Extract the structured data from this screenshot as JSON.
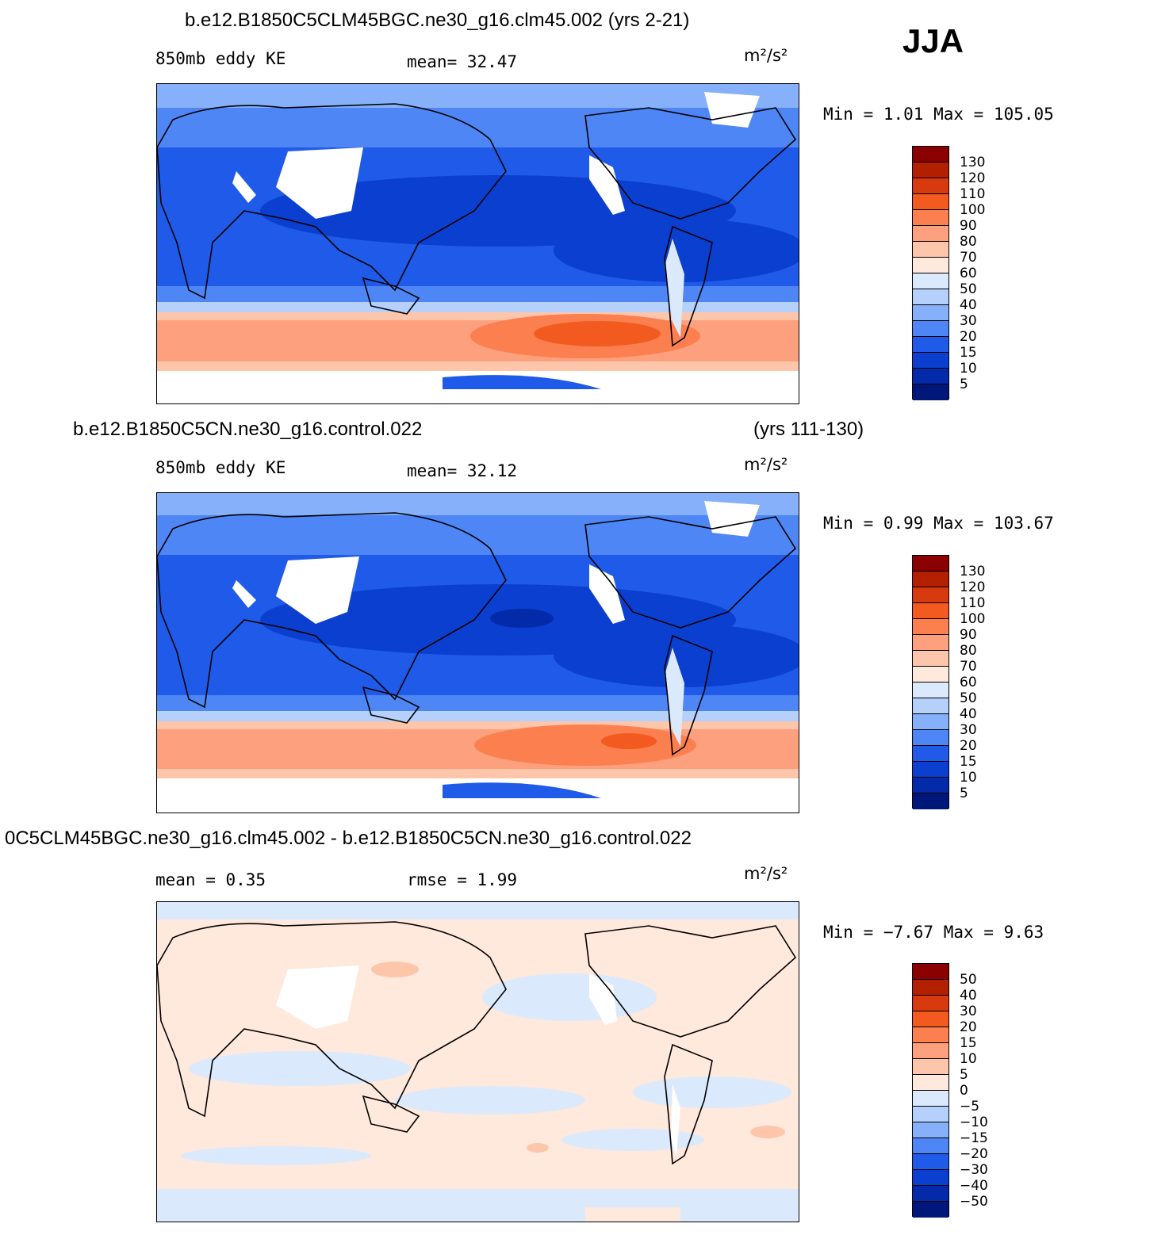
{
  "season": "JJA",
  "panels": [
    {
      "title_left": "b.e12.B1850C5CLM45BGC.ne30_g16.clm45.002 (yrs 2-21)",
      "title_right": "",
      "left_label": "850mb eddy KE",
      "center_label": "mean=   32.47",
      "units": "m²/s²",
      "minmax": "Min =    1.01 Max = 105.05",
      "colorbar_labels": [
        "130",
        "120",
        "110",
        "100",
        "90",
        "80",
        "70",
        "60",
        "50",
        "40",
        "30",
        "20",
        "15",
        "10",
        "5"
      ]
    },
    {
      "title_left": "b.e12.B1850C5CN.ne30_g16.control.022",
      "title_right": "(yrs 111-130)",
      "left_label": "850mb eddy KE",
      "center_label": "mean=   32.12",
      "units": "m²/s²",
      "minmax": "Min =    0.99 Max = 103.67",
      "colorbar_labels": [
        "130",
        "120",
        "110",
        "100",
        "90",
        "80",
        "70",
        "60",
        "50",
        "40",
        "30",
        "20",
        "15",
        "10",
        "5"
      ]
    },
    {
      "title_left": "0C5CLM45BGC.ne30_g16.clm45.002 - b.e12.B1850C5CN.ne30_g16.control.022",
      "title_right": "",
      "left_label": "mean =    0.35",
      "center_label": "rmse =    1.99",
      "units": "m²/s²",
      "minmax": "Min =  −7.67 Max =    9.63",
      "colorbar_labels": [
        "50",
        "40",
        "30",
        "20",
        "15",
        "10",
        "5",
        "0",
        "−5",
        "−10",
        "−15",
        "−20",
        "−30",
        "−40",
        "−50"
      ]
    }
  ],
  "colors": {
    "abs_scale": [
      "#8b0000",
      "#b22000",
      "#d83a10",
      "#f25a20",
      "#fb7f4f",
      "#fca07e",
      "#fdc6ab",
      "#fee9dc",
      "#dbe9fc",
      "#b5d0fb",
      "#86b0f9",
      "#4f86f5",
      "#1f5ae8",
      "#0a3fd0",
      "#032aa8",
      "#00177a"
    ],
    "diff_scale": [
      "#8b0000",
      "#b22000",
      "#d83a10",
      "#f25a20",
      "#fb7f4f",
      "#fca07e",
      "#fdc6ab",
      "#fee9dc",
      "#dbe9fc",
      "#b5d0fb",
      "#86b0f9",
      "#4f86f5",
      "#1f5ae8",
      "#0a3fd0",
      "#032aa8",
      "#00177a"
    ]
  }
}
